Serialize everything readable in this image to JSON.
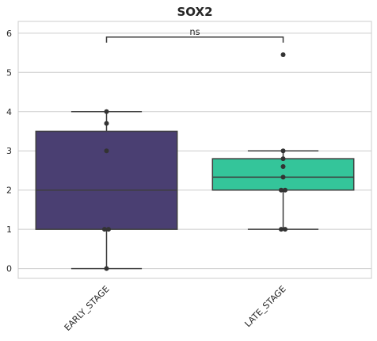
{
  "chart_data": {
    "type": "box",
    "title": "SOX2",
    "xlabel": "",
    "ylabel": "",
    "ylim": [
      -0.25,
      6.3
    ],
    "yticks": [
      0,
      1,
      2,
      3,
      4,
      5,
      6
    ],
    "grid": "horizontal",
    "categories": [
      "EARLY_STAGE",
      "LATE_STAGE"
    ],
    "colors": [
      "#4a3f72",
      "#34c59a"
    ],
    "boxes": [
      {
        "category": "EARLY_STAGE",
        "whisker_low": 0,
        "q1": 1,
        "median": 2,
        "q3": 3.5,
        "whisker_high": 4,
        "points": [
          0,
          1,
          1,
          3,
          3.7,
          4
        ]
      },
      {
        "category": "LATE_STAGE",
        "whisker_low": 1,
        "q1": 2,
        "median": 2.33,
        "q3": 2.8,
        "whisker_high": 3,
        "points": [
          1,
          1,
          2,
          2,
          2.33,
          2.6,
          3,
          2.8,
          5.45
        ]
      }
    ],
    "annotation": {
      "text": "ns",
      "between": [
        "EARLY_STAGE",
        "LATE_STAGE"
      ],
      "y": 5.9
    }
  }
}
